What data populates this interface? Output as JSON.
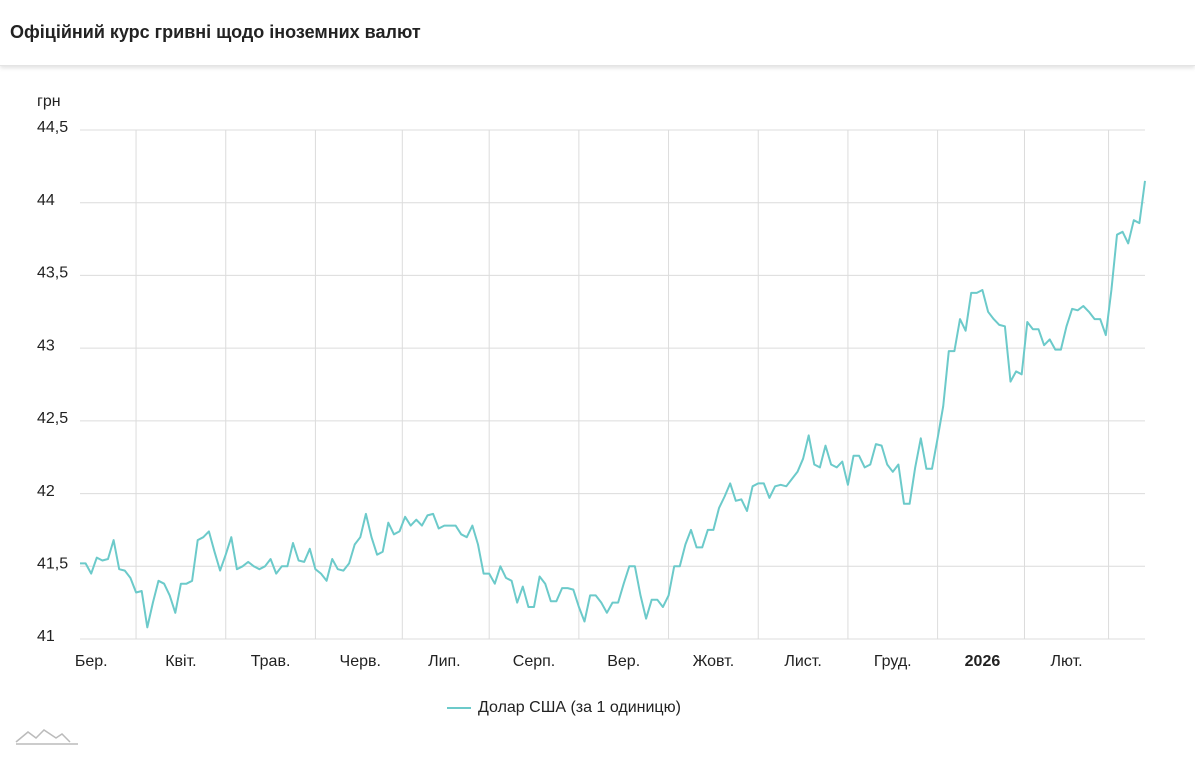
{
  "chart_data": {
    "type": "line",
    "title": "Офіційний курс гривні щодо іноземних валют",
    "y_label": "грн",
    "categories": [
      null,
      null,
      "Бер.",
      null,
      null,
      null,
      null,
      null,
      null,
      null,
      null,
      null,
      null,
      null,
      null,
      null,
      null,
      null,
      "Квіт.",
      null,
      null,
      null,
      null,
      null,
      null,
      null,
      null,
      null,
      null,
      null,
      null,
      null,
      null,
      null,
      "Трав.",
      null,
      null,
      null,
      null,
      null,
      null,
      null,
      null,
      null,
      null,
      null,
      null,
      null,
      null,
      null,
      "Черв.",
      null,
      null,
      null,
      null,
      null,
      null,
      null,
      null,
      null,
      null,
      null,
      null,
      null,
      null,
      "Лип.",
      null,
      null,
      null,
      null,
      null,
      null,
      null,
      null,
      null,
      null,
      null,
      null,
      null,
      null,
      null,
      "Серп.",
      null,
      null,
      null,
      null,
      null,
      null,
      null,
      null,
      null,
      null,
      null,
      null,
      null,
      null,
      null,
      "Вер.",
      null,
      null,
      null,
      null,
      null,
      null,
      null,
      null,
      null,
      null,
      null,
      null,
      null,
      null,
      null,
      "Жовт.",
      null,
      null,
      null,
      null,
      null,
      null,
      null,
      null,
      null,
      null,
      null,
      null,
      null,
      null,
      null,
      "Лист.",
      null,
      null,
      null,
      null,
      null,
      null,
      null,
      null,
      null,
      null,
      null,
      null,
      null,
      null,
      null,
      "Груд.",
      null,
      null,
      null,
      null,
      null,
      null,
      null,
      null,
      null,
      null,
      null,
      null,
      null,
      null,
      null,
      "2026",
      null,
      null,
      null,
      null,
      null,
      null,
      null,
      null,
      null,
      null,
      null,
      null,
      null,
      null,
      "Лют.",
      null,
      null,
      null,
      null,
      null,
      null,
      null,
      null,
      null,
      null,
      null,
      null,
      null,
      null
    ],
    "series": [
      {
        "name": "Долар США (за 1 одиницю)",
        "color": "#6ccaca",
        "values": [
          41.52,
          41.52,
          41.45,
          41.56,
          41.54,
          41.55,
          41.68,
          41.48,
          41.47,
          41.42,
          41.32,
          41.33,
          41.08,
          41.25,
          41.4,
          41.38,
          41.3,
          41.18,
          41.38,
          41.38,
          41.4,
          41.68,
          41.7,
          41.74,
          41.6,
          41.47,
          41.58,
          41.7,
          41.48,
          41.5,
          41.53,
          41.5,
          41.48,
          41.5,
          41.55,
          41.45,
          41.5,
          41.5,
          41.66,
          41.54,
          41.53,
          41.62,
          41.48,
          41.45,
          41.4,
          41.55,
          41.48,
          41.47,
          41.52,
          41.65,
          41.7,
          41.86,
          41.7,
          41.58,
          41.6,
          41.8,
          41.72,
          41.74,
          41.84,
          41.78,
          41.82,
          41.78,
          41.85,
          41.86,
          41.76,
          41.78,
          41.78,
          41.78,
          41.72,
          41.7,
          41.78,
          41.65,
          41.45,
          41.45,
          41.38,
          41.5,
          41.42,
          41.4,
          41.25,
          41.36,
          41.22,
          41.22,
          41.43,
          41.38,
          41.26,
          41.26,
          41.35,
          41.35,
          41.34,
          41.22,
          41.12,
          41.3,
          41.3,
          41.25,
          41.18,
          41.25,
          41.25,
          41.38,
          41.5,
          41.5,
          41.3,
          41.14,
          41.27,
          41.27,
          41.22,
          41.3,
          41.5,
          41.5,
          41.65,
          41.75,
          41.63,
          41.63,
          41.75,
          41.75,
          41.9,
          41.98,
          42.07,
          41.95,
          41.96,
          41.88,
          42.05,
          42.07,
          42.07,
          41.97,
          42.05,
          42.06,
          42.05,
          42.1,
          42.15,
          42.24,
          42.4,
          42.2,
          42.18,
          42.33,
          42.2,
          42.18,
          42.22,
          42.06,
          42.26,
          42.26,
          42.18,
          42.2,
          42.34,
          42.33,
          42.2,
          42.15,
          42.2,
          41.93,
          41.93,
          42.18,
          42.38,
          42.17,
          42.17,
          42.38,
          42.6,
          42.98,
          42.98,
          43.2,
          43.12,
          43.38,
          43.38,
          43.4,
          43.25,
          43.2,
          43.16,
          43.15,
          42.77,
          42.84,
          42.82,
          43.18,
          43.13,
          43.13,
          43.02,
          43.06,
          42.99,
          42.99,
          43.15,
          43.27,
          43.26,
          43.29,
          43.25,
          43.2,
          43.2,
          43.09,
          43.4,
          43.78,
          43.8,
          43.72,
          43.88,
          43.86,
          44.15
        ]
      }
    ],
    "ylim": [
      41,
      44.5
    ],
    "yticks": [
      41,
      {
        "value": 41.5,
        "label": "41,5"
      },
      42,
      {
        "value": 42.5,
        "label": "42,5"
      },
      43,
      {
        "value": 43.5,
        "label": "43,5"
      },
      44,
      {
        "value": 44.5,
        "label": "44,5"
      }
    ],
    "grid": true,
    "legend": "bottom"
  }
}
